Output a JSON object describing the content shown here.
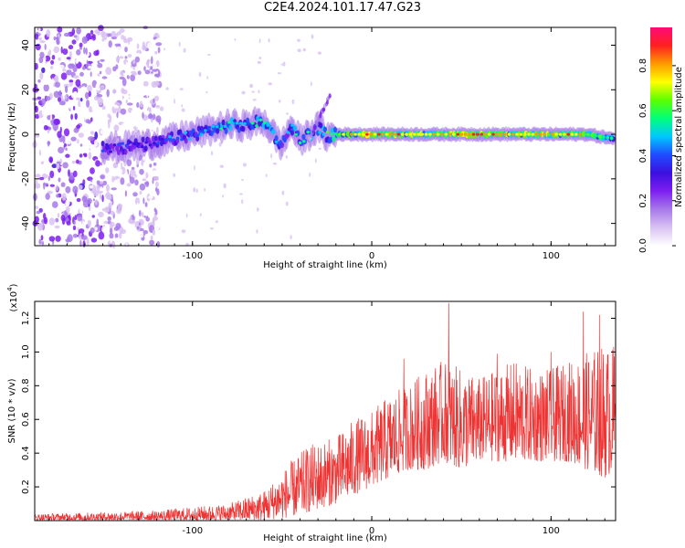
{
  "title": "C2E4.2024.101.17.47.G23",
  "chart_data": [
    {
      "type": "heatmap",
      "xlabel": "Height of straight line (km)",
      "ylabel": "Frequency (Hz)",
      "xlim": [
        -188,
        136
      ],
      "ylim": [
        -50,
        48
      ],
      "x_ticks": [
        -100,
        0,
        100
      ],
      "y_ticks": [
        40,
        20,
        0,
        -20,
        -40
      ],
      "colorbar": {
        "label": "Normalized spectral amplitude",
        "range": [
          0,
          0.97
        ],
        "ticks": [
          0.0,
          0.2,
          0.4,
          0.6,
          0.8
        ],
        "tick_labels": [
          "0.0",
          "0.2",
          "0.4",
          "0.6",
          "0.8"
        ],
        "colormap": [
          "#ffffff",
          "#d9c2f2",
          "#a779ea",
          "#7d1ff0",
          "#3c10e0",
          "#1f4cff",
          "#00c8ff",
          "#00ff7a",
          "#5cff00",
          "#ffff00",
          "#ff9a00",
          "#ff2020",
          "#ff0a78"
        ]
      },
      "ridge": [
        {
          "x": -150,
          "y": -6,
          "amp": 0.45
        },
        {
          "x": -140,
          "y": -6,
          "amp": 0.42
        },
        {
          "x": -130,
          "y": -5,
          "amp": 0.4
        },
        {
          "x": -120,
          "y": -4,
          "amp": 0.42
        },
        {
          "x": -110,
          "y": -2,
          "amp": 0.48
        },
        {
          "x": -100,
          "y": 0,
          "amp": 0.5
        },
        {
          "x": -90,
          "y": 2,
          "amp": 0.55
        },
        {
          "x": -80,
          "y": 4,
          "amp": 0.58
        },
        {
          "x": -70,
          "y": 4,
          "amp": 0.55
        },
        {
          "x": -60,
          "y": 6,
          "amp": 0.6
        },
        {
          "x": -55,
          "y": 0,
          "amp": 0.58
        },
        {
          "x": -50,
          "y": -5,
          "amp": 0.5
        },
        {
          "x": -45,
          "y": 4,
          "amp": 0.6
        },
        {
          "x": -40,
          "y": -3,
          "amp": 0.55
        },
        {
          "x": -35,
          "y": 0,
          "amp": 0.6
        },
        {
          "x": -30,
          "y": 3,
          "amp": 0.55
        },
        {
          "x": -25,
          "y": -1,
          "amp": 0.62
        },
        {
          "x": -20,
          "y": 0,
          "amp": 0.75
        },
        {
          "x": 0,
          "y": 0,
          "amp": 0.85
        },
        {
          "x": 20,
          "y": 0,
          "amp": 0.85
        },
        {
          "x": 40,
          "y": 0,
          "amp": 0.85
        },
        {
          "x": 60,
          "y": 0,
          "amp": 0.88
        },
        {
          "x": 80,
          "y": 0,
          "amp": 0.85
        },
        {
          "x": 100,
          "y": 0,
          "amp": 0.85
        },
        {
          "x": 120,
          "y": 0,
          "amp": 0.8
        },
        {
          "x": 135,
          "y": -2,
          "amp": 0.6
        }
      ],
      "noise_region": {
        "x": [
          -188,
          -118
        ],
        "y": [
          -50,
          48
        ],
        "amp": 0.25
      }
    },
    {
      "type": "line",
      "xlabel": "Height of straight line (km)",
      "ylabel": "SNR (10 * v/v)",
      "y_multiplier": "(x10",
      "y_multiplier_exp": "4",
      "y_multiplier_close": ")",
      "xlim": [
        -188,
        136
      ],
      "ylim": [
        0,
        1.3
      ],
      "x_ticks": [
        -100,
        0,
        100
      ],
      "y_ticks": [
        0.2,
        0.4,
        0.6,
        0.8,
        1.0,
        1.2
      ],
      "y_tick_labels": [
        "0.2",
        "0.4",
        "0.6",
        "0.8",
        "1.0",
        "1.2"
      ],
      "series": [
        {
          "color": "#ee3333",
          "envelope": {
            "x": [
              -188,
              -150,
              -120,
              -100,
              -80,
              -60,
              -45,
              -35,
              -20,
              -10,
              0,
              10,
              20,
              30,
              40,
              50,
              60,
              70,
              80,
              90,
              100,
              110,
              120,
              130,
              136
            ],
            "low": [
              0.0,
              0.0,
              0.0,
              0.0,
              0.0,
              0.0,
              0.02,
              0.05,
              0.1,
              0.15,
              0.2,
              0.25,
              0.3,
              0.3,
              0.35,
              0.3,
              0.35,
              0.35,
              0.35,
              0.35,
              0.35,
              0.35,
              0.3,
              0.25,
              0.3
            ],
            "high": [
              0.04,
              0.05,
              0.06,
              0.08,
              0.1,
              0.18,
              0.35,
              0.45,
              0.5,
              0.6,
              0.65,
              0.75,
              0.8,
              0.9,
              0.95,
              0.9,
              0.85,
              0.9,
              0.95,
              0.9,
              0.9,
              0.95,
              1.0,
              1.05,
              1.02
            ]
          },
          "peaks": [
            {
              "x": 43,
              "y": 1.29
            },
            {
              "x": 118,
              "y": 1.24
            },
            {
              "x": 127,
              "y": 1.22
            },
            {
              "x": 135,
              "y": 1.03
            },
            {
              "x": 100,
              "y": 1.0
            },
            {
              "x": 70,
              "y": 0.99
            },
            {
              "x": 18,
              "y": 0.96
            }
          ]
        }
      ]
    }
  ]
}
